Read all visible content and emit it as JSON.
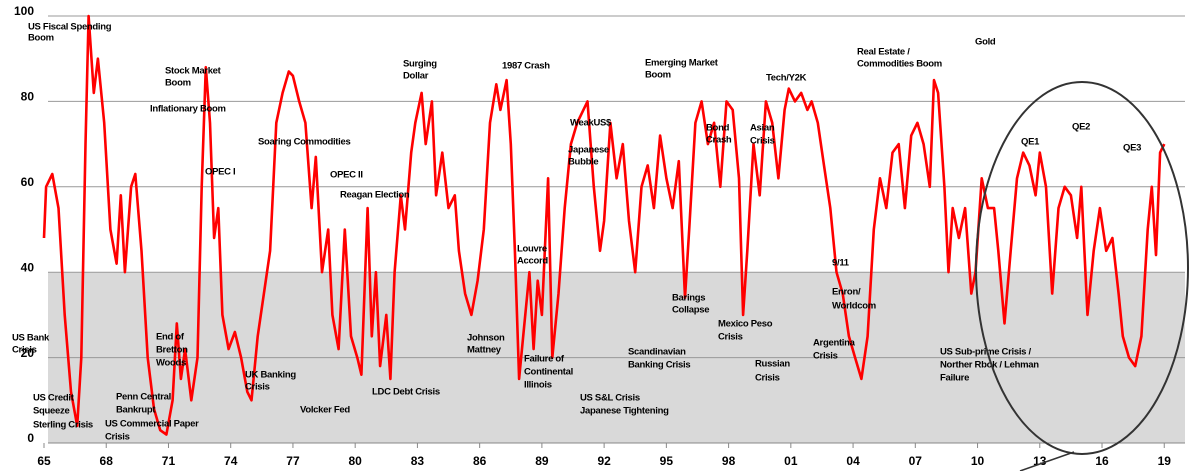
{
  "chart_data": {
    "type": "line",
    "xlim": [
      1965,
      2020
    ],
    "ylim": [
      0,
      100
    ],
    "xticks": [
      {
        "value": 1965,
        "label": "65"
      },
      {
        "value": 1968,
        "label": "68"
      },
      {
        "value": 1971,
        "label": "71"
      },
      {
        "value": 1974,
        "label": "74"
      },
      {
        "value": 1977,
        "label": "77"
      },
      {
        "value": 1980,
        "label": "80"
      },
      {
        "value": 1983,
        "label": "83"
      },
      {
        "value": 1986,
        "label": "86"
      },
      {
        "value": 1989,
        "label": "89"
      },
      {
        "value": 1992,
        "label": "92"
      },
      {
        "value": 1995,
        "label": "95"
      },
      {
        "value": 1998,
        "label": "98"
      },
      {
        "value": 2001,
        "label": "01"
      },
      {
        "value": 2004,
        "label": "04"
      },
      {
        "value": 2007,
        "label": "07"
      },
      {
        "value": 2010,
        "label": "10"
      },
      {
        "value": 2013,
        "label": "13"
      },
      {
        "value": 2016,
        "label": "16"
      },
      {
        "value": 2019,
        "label": "19"
      }
    ],
    "yticks": [
      0,
      20,
      40,
      60,
      80,
      100
    ],
    "grid": true,
    "shaded_range": [
      0,
      40
    ],
    "shade_color": "#d9d9d9",
    "series": [
      {
        "color": "#ff0000",
        "x": [
          1965.0,
          1965.1,
          1965.4,
          1965.7,
          1966.0,
          1966.3,
          1966.6,
          1966.8,
          1967.0,
          1967.15,
          1967.4,
          1967.6,
          1967.9,
          1968.2,
          1968.5,
          1968.7,
          1968.9,
          1969.2,
          1969.4,
          1969.7,
          1970.0,
          1970.3,
          1970.6,
          1970.9,
          1971.2,
          1971.4,
          1971.6,
          1971.8,
          1972.1,
          1972.4,
          1972.6,
          1972.8,
          1973.0,
          1973.2,
          1973.4,
          1973.6,
          1973.9,
          1974.2,
          1974.5,
          1974.8,
          1975.0,
          1975.3,
          1975.6,
          1975.9,
          1976.2,
          1976.5,
          1976.8,
          1977.0,
          1977.3,
          1977.6,
          1977.9,
          1978.1,
          1978.4,
          1978.7,
          1978.9,
          1979.2,
          1979.5,
          1979.8,
          1980.1,
          1980.3,
          1980.6,
          1980.8,
          1981.0,
          1981.2,
          1981.5,
          1981.7,
          1981.9,
          1982.2,
          1982.4,
          1982.7,
          1982.9,
          1983.2,
          1983.4,
          1983.7,
          1983.9,
          1984.2,
          1984.5,
          1984.8,
          1985.0,
          1985.3,
          1985.6,
          1985.9,
          1986.2,
          1986.5,
          1986.8,
          1987.0,
          1987.3,
          1987.5,
          1987.7,
          1987.9,
          1988.1,
          1988.4,
          1988.6,
          1988.8,
          1989.0,
          1989.3,
          1989.5,
          1989.8,
          1990.1,
          1990.4,
          1990.7,
          1991.0,
          1991.2,
          1991.5,
          1991.8,
          1992.0,
          1992.3,
          1992.6,
          1992.9,
          1993.2,
          1993.5,
          1993.8,
          1994.1,
          1994.4,
          1994.7,
          1995.0,
          1995.3,
          1995.6,
          1995.9,
          1996.1,
          1996.4,
          1996.7,
          1997.0,
          1997.3,
          1997.6,
          1997.9,
          1998.2,
          1998.5,
          1998.7,
          1998.9,
          1999.2,
          1999.5,
          1999.8,
          2000.1,
          2000.4,
          2000.7,
          2000.9,
          2001.2,
          2001.5,
          2001.8,
          2002.0,
          2002.3,
          2002.6,
          2002.9,
          2003.2,
          2003.5,
          2003.8,
          2004.1,
          2004.4,
          2004.7,
          2005.0,
          2005.3,
          2005.6,
          2005.9,
          2006.2,
          2006.5,
          2006.8,
          2007.1,
          2007.4,
          2007.7,
          2007.9,
          2008.1,
          2008.4,
          2008.6,
          2008.8,
          2009.1,
          2009.4,
          2009.7,
          2009.9,
          2010.2,
          2010.5,
          2010.8,
          2011.0,
          2011.3,
          2011.6,
          2011.9,
          2012.2,
          2012.5,
          2012.8,
          2013.0,
          2013.3,
          2013.6,
          2013.9,
          2014.2,
          2014.5,
          2014.8,
          2015.0,
          2015.3,
          2015.6,
          2015.9,
          2016.2,
          2016.5,
          2016.8,
          2017.0,
          2017.3,
          2017.6,
          2017.9,
          2018.2,
          2018.4,
          2018.6,
          2018.8,
          2019.0
        ],
        "values": [
          48,
          60,
          63,
          55,
          30,
          12,
          4,
          20,
          70,
          100,
          82,
          90,
          75,
          50,
          42,
          58,
          40,
          60,
          63,
          45,
          20,
          8,
          3,
          2,
          10,
          28,
          15,
          22,
          10,
          20,
          60,
          88,
          75,
          48,
          55,
          30,
          22,
          26,
          20,
          12,
          10,
          25,
          35,
          45,
          75,
          82,
          87,
          86,
          80,
          75,
          55,
          67,
          40,
          50,
          30,
          22,
          50,
          25,
          20,
          16,
          55,
          25,
          40,
          18,
          30,
          15,
          40,
          58,
          50,
          68,
          75,
          82,
          70,
          80,
          58,
          68,
          55,
          58,
          45,
          35,
          30,
          38,
          50,
          75,
          84,
          78,
          85,
          70,
          45,
          15,
          25,
          40,
          22,
          38,
          30,
          62,
          20,
          35,
          55,
          70,
          75,
          78,
          80,
          60,
          45,
          52,
          75,
          62,
          70,
          52,
          40,
          60,
          65,
          55,
          72,
          62,
          55,
          66,
          34,
          50,
          75,
          80,
          70,
          75,
          60,
          80,
          78,
          62,
          30,
          45,
          70,
          58,
          80,
          75,
          62,
          78,
          83,
          80,
          82,
          78,
          80,
          75,
          65,
          55,
          40,
          35,
          25,
          20,
          15,
          25,
          50,
          62,
          55,
          68,
          70,
          55,
          72,
          75,
          70,
          60,
          85,
          82,
          60,
          40,
          55,
          48,
          55,
          35,
          40,
          62,
          55,
          55,
          45,
          28,
          45,
          62,
          68,
          65,
          58,
          68,
          60,
          35,
          55,
          60,
          58,
          48,
          60,
          30,
          45,
          55,
          45,
          48,
          35,
          25,
          20,
          18,
          25,
          50,
          60,
          44,
          68,
          70
        ]
      }
    ],
    "annotations": [
      "US Fiscal Spending",
      "Boom",
      "Stock Market",
      "Boom",
      "Inflationary Boom",
      "OPEC I",
      "Soaring Commodities",
      "OPEC II",
      "Reagan Election",
      "Surging",
      "Dollar",
      "1987 Crash",
      "Emerging  Market",
      "Boom",
      "Tech/Y2K",
      "Real Estate /",
      "Commodities  Boom",
      "Gold",
      "WeakUS$",
      "Japanese",
      "Bubble",
      "Bond",
      "Crash",
      "Asian",
      "Crisis",
      "QE1",
      "QE2",
      "QE3",
      "Louvre",
      "Accord",
      "9/11",
      "Enron/",
      "Worldcom",
      "Barings",
      "Collapse",
      "Mexico Peso",
      "Crisis",
      "Argentina",
      "Crisis",
      "Russian",
      "Crisis",
      "US Sub-prime Crisis /",
      "Norther Rbok / Lehman",
      "Failure",
      "Johnson",
      "Mattney",
      "Failure of",
      "Continental",
      "Illinois",
      "Scandinavian",
      "Banking Crisis",
      "US S&L Crisis",
      "Japanese Tightening",
      "LDC Debt Crisis",
      "Volcker Fed",
      "UK Banking",
      "Crisis",
      "US Bank",
      "Crisis",
      "End of",
      "Bretton",
      "Woods",
      "US Credit",
      "Squeeze",
      "Sterling Crisis",
      "Penn Central",
      "Bankrupt",
      "US Commercial Paper",
      "Crisis"
    ]
  }
}
